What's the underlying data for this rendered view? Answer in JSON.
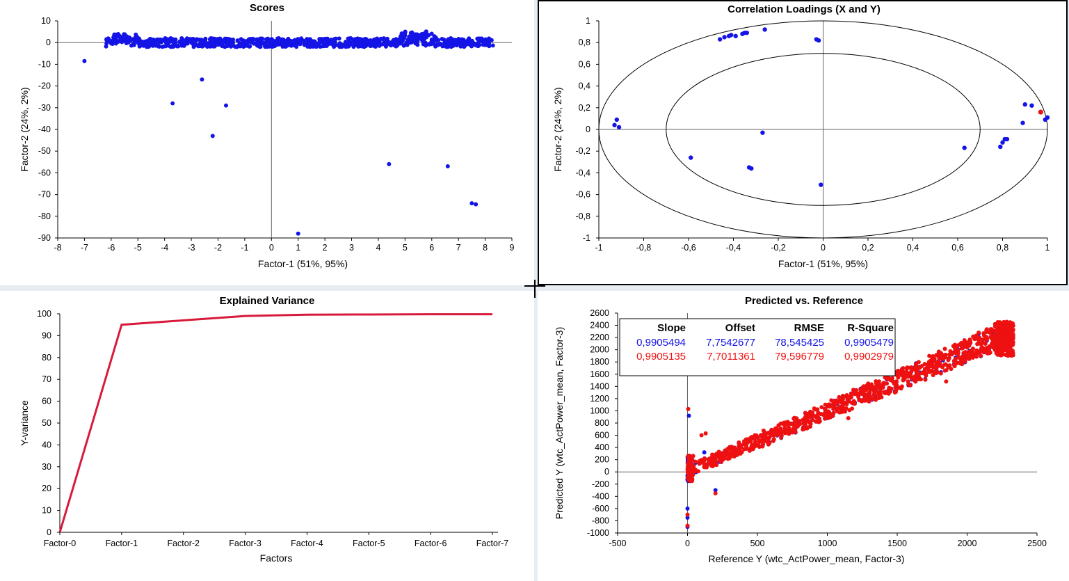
{
  "colors": {
    "blue": "#1414e6",
    "red": "#ee1111",
    "line": "#d81a3a",
    "axis": "#000000"
  },
  "panels": {
    "scores": {
      "title": "Scores"
    },
    "loadings": {
      "title": "Correlation Loadings (X and Y)"
    },
    "variance": {
      "title": "Explained Variance"
    },
    "predicted": {
      "title": "Predicted vs. Reference"
    }
  },
  "stats": {
    "headers": [
      "Slope",
      "Offset",
      "RMSE",
      "R-Square"
    ],
    "rows": [
      {
        "series": "blue",
        "values": [
          "0,9905494",
          "7,7542677",
          "78,545425",
          "0,9905479"
        ]
      },
      {
        "series": "red",
        "values": [
          "0,9905135",
          "7,7011361",
          "79,596779",
          "0,9902979"
        ]
      }
    ]
  },
  "chart_data": [
    {
      "id": "scores",
      "type": "scatter",
      "title": "Scores",
      "xlabel": "Factor-1 (51%, 95%)",
      "ylabel": "Factor-2 (24%, 2%)",
      "xlim": [
        -8,
        9
      ],
      "ylim": [
        -90,
        10
      ],
      "xticks": [
        -8,
        -7,
        -6,
        -5,
        -4,
        -3,
        -2,
        -1,
        0,
        1,
        2,
        3,
        4,
        5,
        6,
        7,
        8,
        9
      ],
      "yticks": [
        10,
        0,
        -10,
        -20,
        -30,
        -40,
        -50,
        -60,
        -70,
        -80,
        -90
      ],
      "band": {
        "x_range": [
          -6.2,
          8.3
        ],
        "y_range": [
          -3,
          5
        ],
        "note": "dense cluster of points"
      },
      "points": [
        [
          -7.0,
          -8.5
        ],
        [
          -3.7,
          -28
        ],
        [
          -2.6,
          -17
        ],
        [
          -2.2,
          -43
        ],
        [
          -1.7,
          -29
        ],
        [
          1.0,
          -88
        ],
        [
          4.4,
          -56
        ],
        [
          6.6,
          -57
        ],
        [
          7.5,
          -74
        ],
        [
          7.65,
          -74.5
        ]
      ]
    },
    {
      "id": "loadings",
      "type": "scatter",
      "title": "Correlation Loadings (X and Y)",
      "xlabel": "Factor-1 (51%, 95%)",
      "ylabel": "Factor-2 (24%, 2%)",
      "xlim": [
        -1,
        1
      ],
      "ylim": [
        -1,
        1
      ],
      "xticks": [
        "-1",
        "-0,8",
        "-0,6",
        "-0,4",
        "-0,2",
        "0",
        "0,2",
        "0,4",
        "0,6",
        "0,8",
        "1"
      ],
      "yticks": [
        "1",
        "0,8",
        "0,6",
        "0,4",
        "0,2",
        "0",
        "-0,2",
        "-0,4",
        "-0,6",
        "-0,8",
        "-1"
      ],
      "ellipses": [
        1.0,
        0.7
      ],
      "x_points": [
        [
          -0.46,
          0.83
        ],
        [
          -0.44,
          0.85
        ],
        [
          -0.42,
          0.86
        ],
        [
          -0.41,
          0.87
        ],
        [
          -0.39,
          0.86
        ],
        [
          -0.36,
          0.88
        ],
        [
          -0.35,
          0.89
        ],
        [
          -0.34,
          0.89
        ],
        [
          -0.26,
          0.92
        ],
        [
          -0.02,
          0.82
        ],
        [
          -0.03,
          0.83
        ],
        [
          -0.93,
          0.04
        ],
        [
          -0.92,
          0.09
        ],
        [
          -0.91,
          0.02
        ],
        [
          -0.59,
          -0.26
        ],
        [
          -0.27,
          -0.03
        ],
        [
          -0.33,
          -0.35
        ],
        [
          -0.32,
          -0.36
        ],
        [
          -0.01,
          -0.51
        ],
        [
          0.63,
          -0.17
        ],
        [
          0.79,
          -0.16
        ],
        [
          0.8,
          -0.12
        ],
        [
          0.81,
          -0.09
        ],
        [
          0.82,
          -0.09
        ],
        [
          0.89,
          0.06
        ],
        [
          0.9,
          0.23
        ],
        [
          0.93,
          0.22
        ],
        [
          0.99,
          0.09
        ],
        [
          1.0,
          0.11
        ]
      ],
      "y_points": [
        [
          0.97,
          0.16
        ]
      ]
    },
    {
      "id": "variance",
      "type": "line",
      "title": "Explained Variance",
      "xlabel": "Factors",
      "ylabel": "Y-variance",
      "categories": [
        "Factor-0",
        "Factor-1",
        "Factor-2",
        "Factor-3",
        "Factor-4",
        "Factor-5",
        "Factor-6",
        "Factor-7"
      ],
      "values": [
        0,
        95,
        97,
        99,
        99.6,
        99.7,
        99.8,
        99.8
      ],
      "ylim": [
        0,
        100
      ],
      "yticks": [
        100,
        90,
        80,
        70,
        60,
        50,
        40,
        30,
        20,
        10,
        0
      ]
    },
    {
      "id": "predicted",
      "type": "scatter",
      "title": "Predicted vs. Reference",
      "xlabel": "Reference Y (wtc_ActPower_mean, Factor-3)",
      "ylabel": "Predicted Y (wtc_ActPower_mean, Factor-3)",
      "xlim": [
        -500,
        2500
      ],
      "ylim": [
        -1000,
        2600
      ],
      "xticks": [
        -500,
        0,
        500,
        1000,
        1500,
        2000,
        2500
      ],
      "yticks": [
        2600,
        2400,
        2200,
        2000,
        1800,
        1600,
        1400,
        1200,
        1000,
        800,
        600,
        400,
        200,
        0,
        -200,
        -400,
        -600,
        -800,
        -1000
      ],
      "band": {
        "x_range": [
          0,
          2330
        ],
        "note": "dense points along y = x"
      },
      "outliers_blue": [
        [
          0,
          -600
        ],
        [
          0,
          -750
        ],
        [
          0,
          -900
        ],
        [
          10,
          920
        ],
        [
          120,
          320
        ],
        [
          200,
          -300
        ]
      ],
      "outliers_red": [
        [
          0,
          -700
        ],
        [
          0,
          -880
        ],
        [
          5,
          1030
        ],
        [
          100,
          600
        ],
        [
          130,
          630
        ],
        [
          200,
          -350
        ],
        [
          1150,
          880
        ],
        [
          1850,
          1480
        ]
      ]
    }
  ]
}
